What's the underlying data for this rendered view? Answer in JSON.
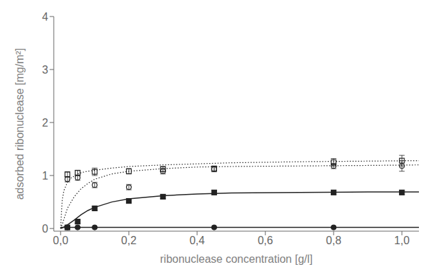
{
  "chart_data": {
    "type": "scatter",
    "title": "",
    "xlabel": "ribonuclease concentration [g/l]",
    "ylabel": "adsorbed ribonuclease [mg/m²]",
    "xlim": [
      -0.02,
      1.05
    ],
    "ylim": [
      -0.05,
      4.0
    ],
    "xticks": [
      {
        "value": 0.0,
        "label": "0,0"
      },
      {
        "value": 0.2,
        "label": "0,2"
      },
      {
        "value": 0.4,
        "label": "0,4"
      },
      {
        "value": 0.6,
        "label": "0,6"
      },
      {
        "value": 0.8,
        "label": "0,8"
      },
      {
        "value": 1.0,
        "label": "1,0"
      }
    ],
    "yticks": [
      0,
      1,
      2,
      3,
      4
    ],
    "grid": false,
    "series": [
      {
        "color": "#222222",
        "marker": "square-open",
        "line_style": "dotted",
        "x": [
          0.02,
          0.05,
          0.1,
          0.2,
          0.3,
          0.45,
          0.8,
          1.0
        ],
        "values": [
          1.02,
          1.05,
          1.07,
          1.08,
          1.12,
          1.13,
          1.25,
          1.28
        ],
        "yerr": [
          0.05,
          0.05,
          0.07,
          0.05,
          0.05,
          0.05,
          0.07,
          0.1
        ],
        "curve_x": [
          0.0,
          0.005,
          0.01,
          0.02,
          0.03,
          0.05,
          0.07,
          0.1,
          0.15,
          0.2,
          0.3,
          0.5,
          0.7,
          1.05
        ],
        "curve_y": [
          0.0,
          0.55,
          0.72,
          0.87,
          0.95,
          1.03,
          1.07,
          1.1,
          1.14,
          1.17,
          1.2,
          1.24,
          1.26,
          1.28
        ]
      },
      {
        "color": "#222222",
        "marker": "circle-open",
        "line_style": "dotted",
        "x": [
          0.02,
          0.05,
          0.1,
          0.2,
          0.3,
          0.45,
          0.8,
          1.0
        ],
        "values": [
          0.93,
          0.96,
          0.82,
          0.78,
          1.08,
          1.12,
          1.18,
          1.18
        ],
        "yerr": [
          0.05,
          0.05,
          0.05,
          0.05,
          0.05,
          0.05,
          0.05,
          0.1
        ],
        "curve_x": [
          0.0,
          0.005,
          0.01,
          0.02,
          0.04,
          0.06,
          0.08,
          0.1,
          0.15,
          0.2,
          0.3,
          0.4,
          0.5,
          0.7,
          0.9,
          1.05
        ],
        "curve_y": [
          0.0,
          0.08,
          0.18,
          0.38,
          0.6,
          0.75,
          0.85,
          0.93,
          1.03,
          1.08,
          1.13,
          1.16,
          1.17,
          1.18,
          1.19,
          1.2
        ]
      },
      {
        "color": "#222222",
        "marker": "square",
        "line_style": "solid",
        "x": [
          0.02,
          0.05,
          0.1,
          0.2,
          0.3,
          0.45,
          0.8,
          1.0
        ],
        "values": [
          0.02,
          0.13,
          0.38,
          0.52,
          0.6,
          0.68,
          0.68,
          0.68
        ],
        "yerr": [
          0.02,
          0.03,
          0.04,
          0.04,
          0.04,
          0.04,
          0.04,
          0.04
        ],
        "curve_x": [
          0.0,
          0.005,
          0.01,
          0.02,
          0.04,
          0.06,
          0.08,
          0.1,
          0.15,
          0.2,
          0.3,
          0.4,
          0.5,
          0.7,
          0.9,
          1.05
        ],
        "curve_y": [
          0.0,
          0.01,
          0.03,
          0.07,
          0.16,
          0.26,
          0.34,
          0.4,
          0.5,
          0.56,
          0.62,
          0.65,
          0.67,
          0.68,
          0.69,
          0.69
        ]
      },
      {
        "color": "#222222",
        "marker": "circle",
        "line_style": "solid",
        "x": [
          0.02,
          0.05,
          0.1,
          0.45,
          0.8
        ],
        "values": [
          0.02,
          0.02,
          0.02,
          0.02,
          0.02
        ],
        "yerr": [
          0.01,
          0.01,
          0.01,
          0.01,
          0.01
        ],
        "curve_x": [
          0.0,
          0.5,
          1.05
        ],
        "curve_y": [
          0.02,
          0.02,
          0.02
        ]
      }
    ]
  }
}
